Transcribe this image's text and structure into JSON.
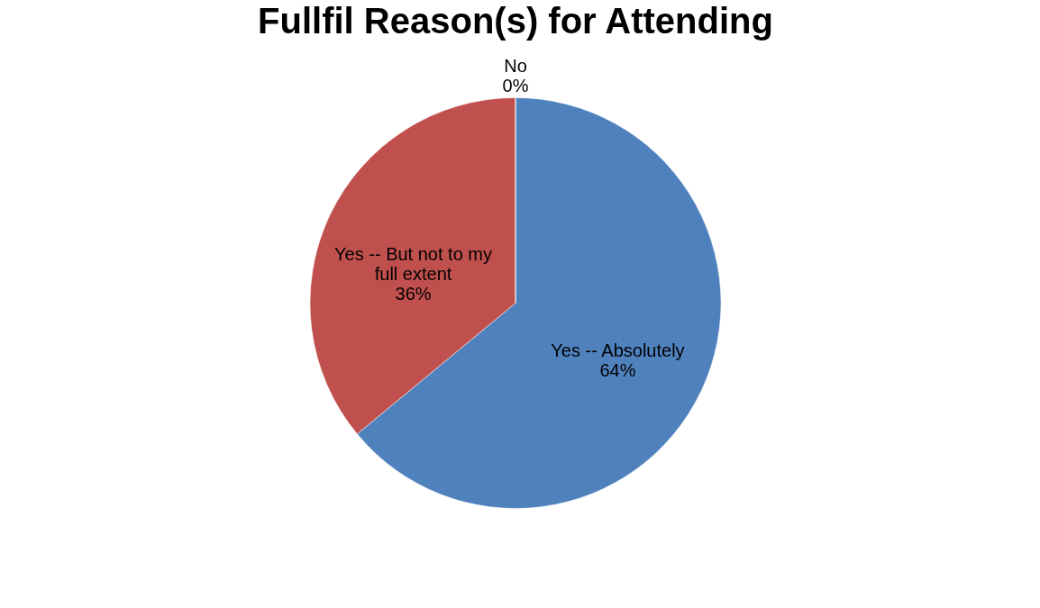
{
  "chart_data": {
    "type": "pie",
    "title": "Fullfil Reason(s) for Attending",
    "categories": [
      "Yes -- Absolutely",
      "Yes -- But not to my full extent",
      "No"
    ],
    "values": [
      64,
      36,
      0
    ],
    "colors": [
      "#4f81bd",
      "#c0504d",
      "#9bbb59"
    ],
    "value_labels": [
      "64%",
      "36%",
      "0%"
    ]
  }
}
